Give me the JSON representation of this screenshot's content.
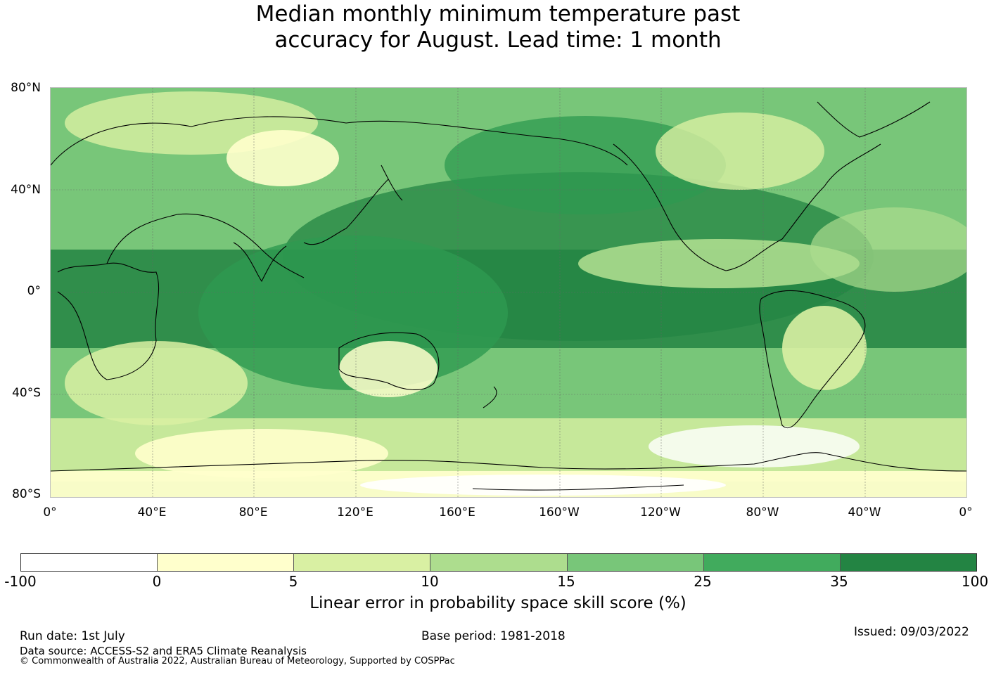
{
  "title_line1": "Median monthly minimum temperature past",
  "title_line2": "accuracy for August. Lead time: 1 month",
  "lat_labels": [
    "80°N",
    "40°N",
    "0°",
    "40°S",
    "80°S"
  ],
  "lon_labels": [
    "0°",
    "40°E",
    "80°E",
    "120°E",
    "160°E",
    "160°W",
    "120°W",
    "80°W",
    "40°W",
    "0°"
  ],
  "colorbar": {
    "colors": [
      "#ffffff",
      "#ffffcc",
      "#d9f0a3",
      "#addd8e",
      "#78c679",
      "#41ab5d",
      "#238443"
    ],
    "ticks": [
      "-100",
      "0",
      "5",
      "10",
      "15",
      "25",
      "35",
      "100"
    ],
    "label": "Linear error in probability space skill score (%)"
  },
  "footer": {
    "run_date": "Run date: 1st July",
    "base_period": "Base period: 1981-2018",
    "issued": "Issued: 09/03/2022",
    "data_source": "Data source: ACCESS-S2 and ERA5 Climate Reanalysis",
    "copyright": "© Commonwealth of Australia 2022, Australian Bureau of Meteorology, Supported by COSPPac"
  }
}
